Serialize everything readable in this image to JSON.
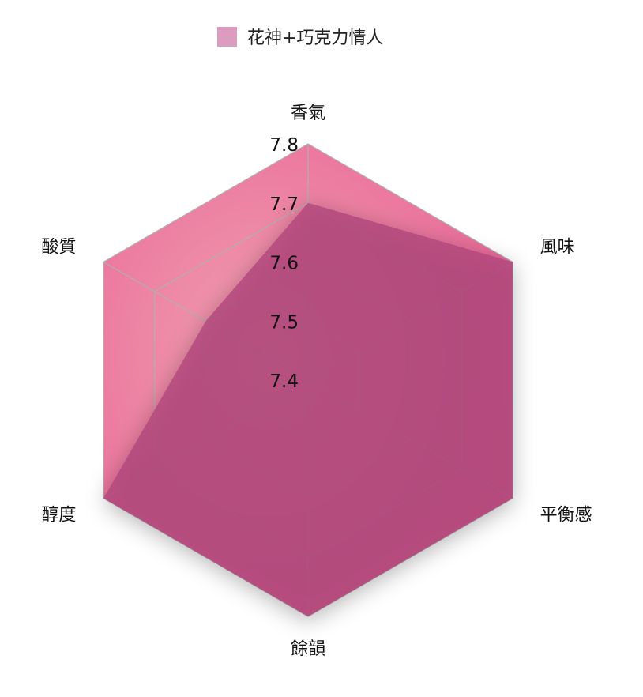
{
  "chart_data": {
    "type": "radar",
    "indicators": [
      "香氣",
      "風味",
      "平衡感",
      "餘韻",
      "醇度",
      "酸質"
    ],
    "range": [
      7.4,
      7.8
    ],
    "ticks": [
      7.4,
      7.5,
      7.6,
      7.7,
      7.8
    ],
    "series": [
      {
        "name": "花神+巧克力情人",
        "values": [
          7.7,
          7.8,
          7.8,
          7.8,
          7.8,
          7.6
        ],
        "color": "#b1457c"
      }
    ],
    "legend_position": "top",
    "legend_swatch_color": "#dc9cbf",
    "split_area_color": "#ec7099",
    "grid_color": "#b0b0b0"
  }
}
